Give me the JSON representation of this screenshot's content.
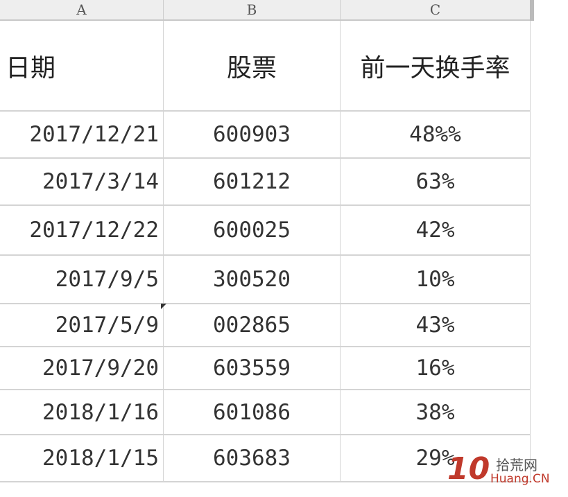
{
  "column_headers": [
    "A",
    "B",
    "C"
  ],
  "header_row": {
    "date": "日期",
    "stock": "股票",
    "turnover": "前一天换手率"
  },
  "rows": [
    {
      "date": "2017/12/21",
      "stock": "600903",
      "turnover": "48%%"
    },
    {
      "date": "2017/3/14",
      "stock": "601212",
      "turnover": "63%"
    },
    {
      "date": "2017/12/22",
      "stock": "600025",
      "turnover": "42%"
    },
    {
      "date": "2017/9/5",
      "stock": "300520",
      "turnover": "10%"
    },
    {
      "date": "2017/5/9",
      "stock": "002865",
      "turnover": "43%"
    },
    {
      "date": "2017/9/20",
      "stock": "603559",
      "turnover": "16%"
    },
    {
      "date": "2018/1/16",
      "stock": "601086",
      "turnover": "38%"
    },
    {
      "date": "2018/1/15",
      "stock": "603683",
      "turnover": "29%"
    }
  ],
  "watermark": {
    "number": "10",
    "cn": "拾荒网",
    "en": "Huang.CN",
    "color": "#c0392b"
  }
}
